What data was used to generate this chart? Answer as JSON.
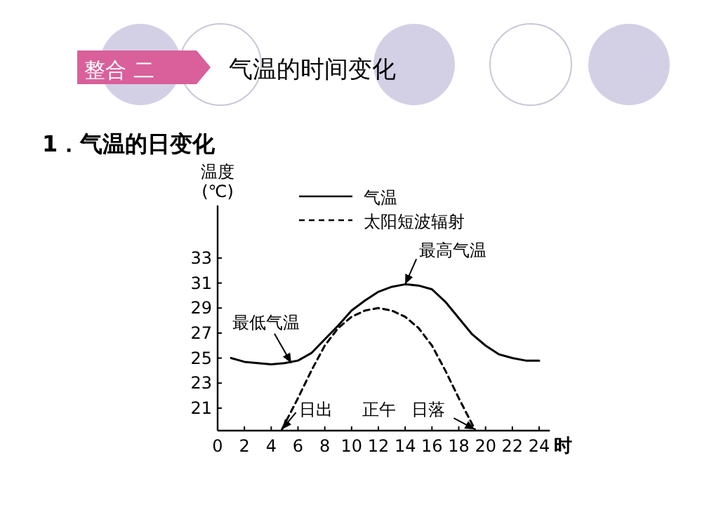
{
  "chart_data": {
    "type": "line",
    "title": "气温的时间变化",
    "subtitle": "1．气温的日变化",
    "xlabel": "时",
    "ylabel": "温度\n(℃)",
    "xlim": [
      0,
      24.8
    ],
    "ylim": [
      19.2,
      37.2
    ],
    "xticks": [
      0,
      2,
      4,
      6,
      8,
      10,
      12,
      14,
      16,
      18,
      20,
      22,
      24
    ],
    "yticks": [
      21,
      23,
      25,
      27,
      29,
      31,
      33
    ],
    "legend": "top",
    "series": [
      {
        "name": "气温",
        "color": "#000000",
        "line_style": "solid",
        "x": [
          1,
          2,
          3,
          4,
          5,
          6,
          7,
          8,
          9,
          10,
          11,
          12,
          13,
          14,
          15,
          16,
          17,
          18,
          19,
          20,
          21,
          22,
          23,
          24
        ],
        "values": [
          25.0,
          24.7,
          24.6,
          24.5,
          24.6,
          24.8,
          25.4,
          26.5,
          27.6,
          28.8,
          29.6,
          30.3,
          30.7,
          30.9,
          30.8,
          30.5,
          29.5,
          28.2,
          26.9,
          26.0,
          25.3,
          25.0,
          24.8,
          24.8
        ]
      },
      {
        "name": "太阳短波辐射",
        "color": "#000000",
        "line_style": "dashed",
        "x": [
          4.8,
          6,
          7,
          8,
          9,
          10,
          11,
          12,
          13,
          14,
          15,
          16,
          17,
          18,
          19.2
        ],
        "values": [
          19.3,
          21.8,
          24.0,
          26.0,
          27.4,
          28.3,
          28.8,
          29.0,
          28.8,
          28.3,
          27.4,
          26.0,
          24.0,
          21.8,
          19.3
        ]
      }
    ],
    "annotations": [
      "整合 二",
      {
        "text": "最高气温",
        "x": 14,
        "y": 30.9
      },
      {
        "text": "最低气温",
        "x": 5.5,
        "y": 24.6
      },
      {
        "text": "日出",
        "x": 4.8,
        "y": 19.3
      },
      "正午",
      {
        "text": "日落",
        "x": 19.2,
        "y": 19.3
      }
    ]
  }
}
